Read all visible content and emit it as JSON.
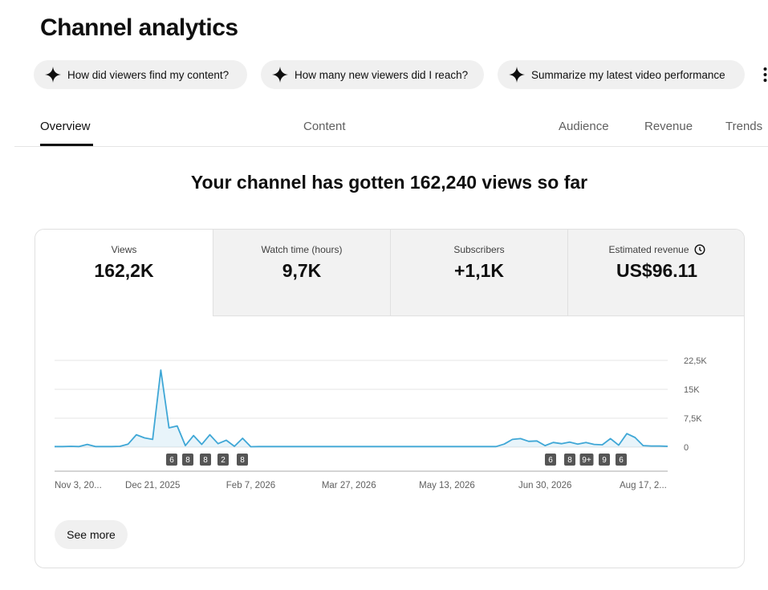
{
  "header": {
    "title": "Channel analytics"
  },
  "suggestions": [
    "How did viewers find my content?",
    "How many new viewers did I reach?",
    "Summarize my latest video performance"
  ],
  "tabs": [
    "Overview",
    "Content",
    "Audience",
    "Revenue",
    "Trends"
  ],
  "headline": "Your channel has gotten 162,240 views so far",
  "metrics": [
    {
      "label": "Views",
      "value": "162,2K"
    },
    {
      "label": "Watch time (hours)",
      "value": "9,7K"
    },
    {
      "label": "Subscribers",
      "value": "+1,1K"
    },
    {
      "label": "Estimated revenue",
      "value": "US$96.11"
    }
  ],
  "chart_data": {
    "type": "line",
    "color": "#3fa7d6",
    "categories": [
      "Nov 3, 20...",
      null,
      null,
      null,
      null,
      null,
      null,
      null,
      null,
      null,
      null,
      null,
      "Dec 21, 2025",
      null,
      null,
      null,
      null,
      null,
      null,
      null,
      null,
      null,
      null,
      null,
      "Feb 7, 2026",
      null,
      null,
      null,
      null,
      null,
      null,
      null,
      null,
      null,
      null,
      null,
      "Mar 27, 2026",
      null,
      null,
      null,
      null,
      null,
      null,
      null,
      null,
      null,
      null,
      null,
      "May 13, 2026",
      null,
      null,
      null,
      null,
      null,
      null,
      null,
      null,
      null,
      null,
      null,
      "Jun 30, 2026",
      null,
      null,
      null,
      null,
      null,
      null,
      null,
      null,
      null,
      null,
      null,
      "Aug 17, 2...",
      null,
      null,
      null
    ],
    "values": [
      150,
      150,
      200,
      150,
      700,
      150,
      150,
      150,
      200,
      800,
      3200,
      2400,
      2000,
      20000,
      5000,
      5500,
      400,
      3000,
      700,
      3200,
      900,
      1800,
      200,
      2300,
      100,
      150,
      150,
      150,
      150,
      150,
      150,
      150,
      150,
      150,
      150,
      150,
      150,
      150,
      150,
      150,
      150,
      150,
      150,
      150,
      150,
      150,
      150,
      150,
      150,
      150,
      150,
      150,
      150,
      150,
      150,
      800,
      2000,
      2200,
      1500,
      1600,
      400,
      1200,
      900,
      1300,
      800,
      1200,
      700,
      600,
      2200,
      500,
      3500,
      2500,
      400,
      300,
      300,
      200
    ],
    "ylim": [
      0,
      22500
    ],
    "yticks": [
      0,
      {
        "value": 7500,
        "label": "7,5K"
      },
      {
        "value": 15000,
        "label": "15K"
      },
      {
        "value": 22500,
        "label": "22,5K"
      }
    ],
    "grid": true
  },
  "video_markers": [
    "6",
    "8",
    "8",
    "2",
    "8",
    "6",
    "8",
    "9+",
    "9",
    "6"
  ],
  "see_more": "See more"
}
